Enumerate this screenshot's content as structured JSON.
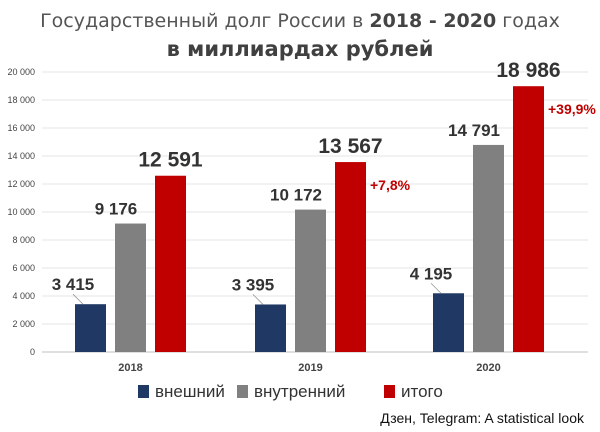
{
  "title_line1_prefix": "Государственный долг России в ",
  "title_line1_years": "2018 - 2020",
  "title_line1_suffix": " годах",
  "title_line2": "в миллиардах рублей",
  "source": "Дзен, Telegram: A statistical look",
  "chart_data": {
    "type": "bar",
    "categories": [
      "2018",
      "2019",
      "2020"
    ],
    "series": [
      {
        "name": "внешний",
        "color": "#1f3864",
        "values": [
          3415,
          3395,
          4195
        ],
        "labels": [
          "3 415",
          "3 395",
          "4 195"
        ]
      },
      {
        "name": "внутренний",
        "color": "#808080",
        "values": [
          9176,
          10172,
          14791
        ],
        "labels": [
          "9 176",
          "10 172",
          "14 791"
        ]
      },
      {
        "name": "итого",
        "color": "#c00000",
        "values": [
          12591,
          13567,
          18986
        ],
        "labels": [
          "12 591",
          "13 567",
          "18 986"
        ]
      }
    ],
    "changes": [
      "",
      "+7,8%",
      "+39,9%"
    ],
    "change_color": "#c00000",
    "ylim": [
      0,
      20000
    ],
    "yticks": [
      0,
      2000,
      4000,
      6000,
      8000,
      10000,
      12000,
      14000,
      16000,
      18000,
      20000
    ],
    "ytick_labels": [
      "0",
      "2 000",
      "4 000",
      "6 000",
      "8 000",
      "10 000",
      "12 000",
      "14 000",
      "16 000",
      "18 000",
      "20 000"
    ],
    "grid": true,
    "legend_position": "bottom"
  }
}
